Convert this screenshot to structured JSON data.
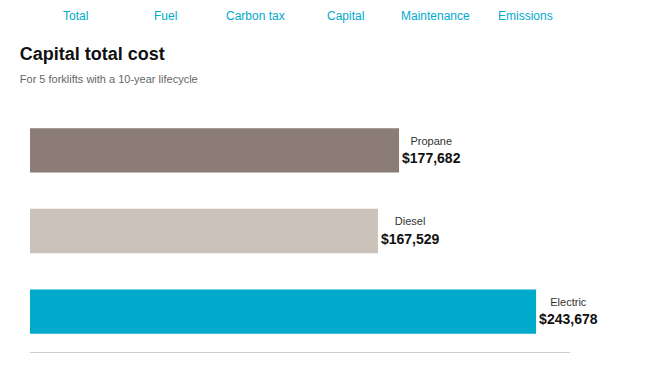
{
  "chart_data": {
    "type": "bar",
    "orientation": "horizontal",
    "title": "Capital total cost",
    "subtitle": "For 5 forklifts with a 10-year lifecycle",
    "categories": [
      "Propane",
      "Diesel",
      "Electric"
    ],
    "values": [
      177682,
      167529,
      243678
    ],
    "value_labels": [
      "$177,682",
      "$167,529",
      "$243,678"
    ],
    "colors": [
      "#8b7d75",
      "#cbc3ba",
      "#00aacb"
    ],
    "xlim": [
      0,
      260000
    ],
    "grid": false,
    "tick_labels": false,
    "data_labels": true,
    "annotations": [
      "Total",
      "Fuel",
      "Carbon tax",
      "Capital",
      "Maintenance",
      "Emissions"
    ]
  }
}
